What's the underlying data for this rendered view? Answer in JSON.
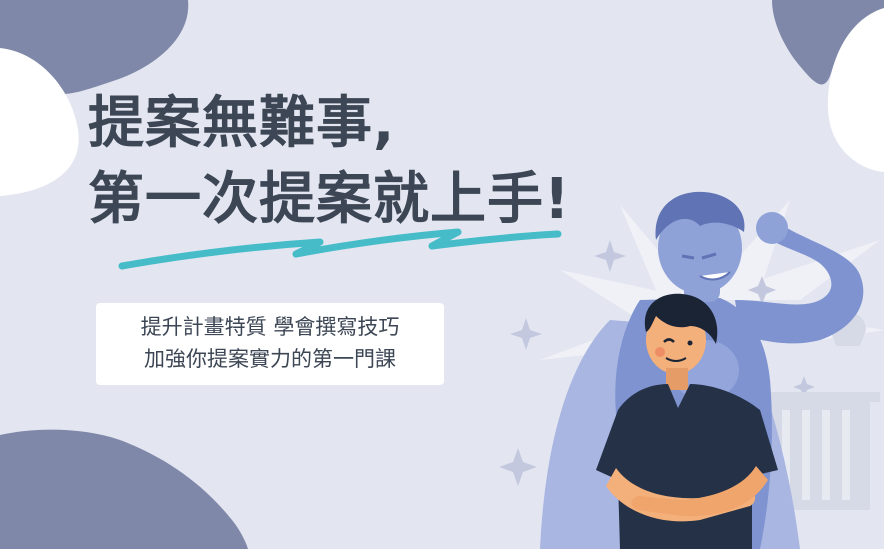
{
  "banner": {
    "headline_line1": "提案無難事,",
    "headline_line2": "第一次提案就上手!",
    "subtitle_line1": "提升計畫特質  學會撰寫技巧",
    "subtitle_line2": "加強你提案實力的第一門課"
  },
  "illustration": {
    "description_icon": "superhero-and-student-illustration"
  },
  "colors": {
    "background": "#e3e6f1",
    "blob": "#7f88a8",
    "headline_text": "#3c4654",
    "underline_accent": "#45bcc8",
    "hero_blue": "#7e93d0",
    "shirt_navy": "#243146",
    "skin": "#f4b07a"
  }
}
